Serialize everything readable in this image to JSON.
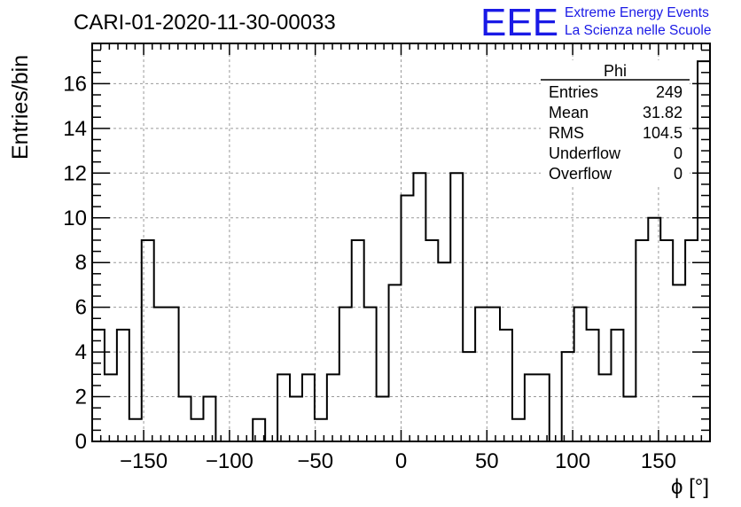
{
  "chart_data": {
    "type": "histogram",
    "title": "CARI-01-2020-11-30-00033",
    "xlabel": "ϕ [°]",
    "ylabel": "Entries/bin",
    "xlim": [
      -180,
      180
    ],
    "ylim": [
      0,
      17.8
    ],
    "bin_width": 7.2,
    "bin_low_edges": [
      -180,
      -172.8,
      -165.6,
      -158.4,
      -151.2,
      -144,
      -136.8,
      -129.6,
      -122.4,
      -115.2,
      -108,
      -100.8,
      -93.6,
      -86.4,
      -79.2,
      -72,
      -64.8,
      -57.6,
      -50.4,
      -43.2,
      -36,
      -28.8,
      -21.6,
      -14.4,
      -7.2,
      0,
      7.2,
      14.4,
      21.6,
      28.8,
      36,
      43.2,
      50.4,
      57.6,
      64.8,
      72,
      79.2,
      86.4,
      93.6,
      100.8,
      108,
      115.2,
      122.4,
      129.6,
      136.8,
      144,
      151.2,
      158.4,
      165.6,
      172.8
    ],
    "values": [
      5,
      3,
      5,
      1,
      9,
      6,
      6,
      2,
      1,
      2,
      0,
      0,
      0,
      1,
      0,
      3,
      2,
      3,
      1,
      3,
      6,
      9,
      6,
      2,
      7,
      11,
      12,
      9,
      8,
      12,
      4,
      6,
      6,
      5,
      1,
      3,
      3,
      0,
      4,
      6,
      5,
      3,
      5,
      2,
      9,
      10,
      9,
      7,
      9,
      17
    ],
    "x_ticks": [
      "−150",
      "−100",
      "−50",
      "0",
      "50",
      "100",
      "150"
    ],
    "x_tick_values": [
      -150,
      -100,
      -50,
      0,
      50,
      100,
      150
    ],
    "y_ticks": [
      "0",
      "2",
      "4",
      "6",
      "8",
      "10",
      "12",
      "14",
      "16"
    ],
    "y_tick_values": [
      0,
      2,
      4,
      6,
      8,
      10,
      12,
      14,
      16
    ],
    "grid": true,
    "stats_box": {
      "name": "Phi",
      "rows": [
        {
          "label": "Entries",
          "value": "249"
        },
        {
          "label": "Mean",
          "value": "31.82"
        },
        {
          "label": "RMS",
          "value": "104.5"
        },
        {
          "label": "Underflow",
          "value": "0"
        },
        {
          "label": "Overflow",
          "value": "0"
        }
      ],
      "position": "top-right"
    }
  },
  "logo": {
    "mark": "EEE",
    "line1": "Extreme Energy Events",
    "line2": "La Scienza nelle Scuole",
    "color": "#1a1ae6"
  }
}
